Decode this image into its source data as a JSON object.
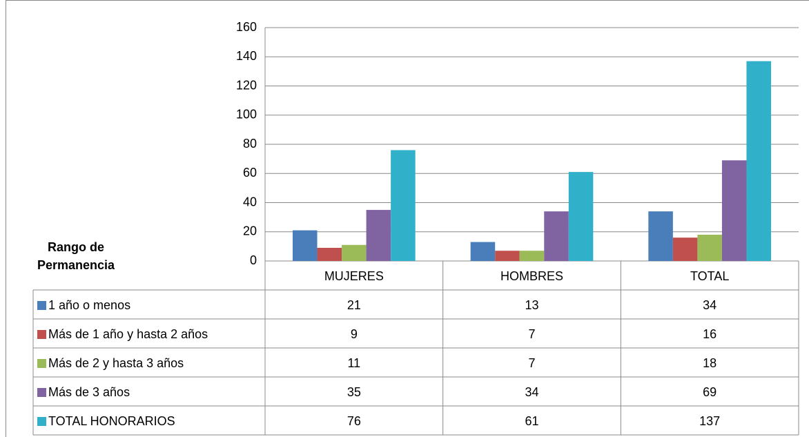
{
  "chart_data": {
    "type": "bar",
    "annotation": "Rango de Permanencia",
    "categories": [
      "MUJERES",
      "HOMBRES",
      "TOTAL"
    ],
    "series": [
      {
        "name": "1 año o menos",
        "color": "#4a7ebb",
        "values": [
          21,
          13,
          34
        ]
      },
      {
        "name": "Más de 1 año y hasta 2 años",
        "color": "#c0504d",
        "values": [
          9,
          7,
          16
        ]
      },
      {
        "name": "Más de 2 y hasta 3 años",
        "color": "#9bbb59",
        "values": [
          11,
          7,
          18
        ]
      },
      {
        "name": "Más de 3 años",
        "color": "#8064a2",
        "values": [
          35,
          34,
          69
        ]
      },
      {
        "name": "TOTAL HONORARIOS",
        "color": "#31b0c9",
        "values": [
          76,
          61,
          137
        ]
      }
    ],
    "ylim": [
      0,
      160
    ],
    "yticks": [
      0,
      20,
      40,
      60,
      80,
      100,
      120,
      140,
      160
    ],
    "grid": true
  }
}
